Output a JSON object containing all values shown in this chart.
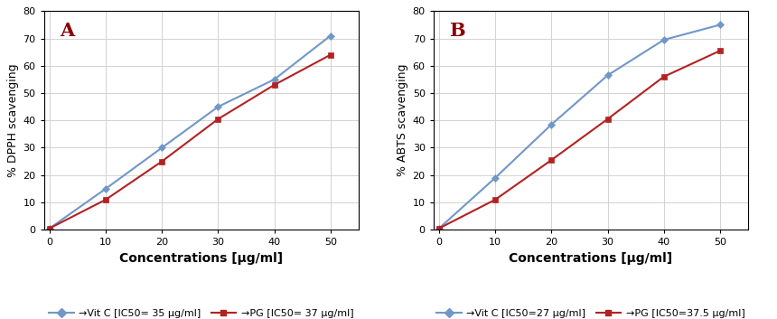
{
  "panel_A": {
    "label": "A",
    "ylabel": "% DPPH scavenging",
    "xlabel": "Concentrations [μg/ml]",
    "xlim": [
      -1,
      55
    ],
    "ylim": [
      0,
      80
    ],
    "xticks": [
      0,
      10,
      20,
      30,
      40,
      50
    ],
    "yticks": [
      0,
      10,
      20,
      30,
      40,
      50,
      60,
      70,
      80
    ],
    "vitC": {
      "x": [
        0,
        10,
        20,
        30,
        40,
        50
      ],
      "y": [
        0.5,
        15,
        30,
        45,
        55,
        71
      ],
      "color": "#7097c8",
      "label": "Vit C [IC50= 35 μg/ml]"
    },
    "PG": {
      "x": [
        0,
        10,
        20,
        30,
        40,
        50
      ],
      "y": [
        0.5,
        11,
        25,
        40.5,
        53,
        64
      ],
      "color": "#b22222",
      "label": "PG [IC50= 37 μg/ml]"
    }
  },
  "panel_B": {
    "label": "B",
    "ylabel": "% ABTS scavenging",
    "xlabel": "Concentrations [μg/ml]",
    "xlim": [
      -1,
      55
    ],
    "ylim": [
      0,
      80
    ],
    "xticks": [
      0,
      10,
      20,
      30,
      40,
      50
    ],
    "yticks": [
      0,
      10,
      20,
      30,
      40,
      50,
      60,
      70,
      80
    ],
    "vitC": {
      "x": [
        0,
        10,
        20,
        30,
        40,
        50
      ],
      "y": [
        0.5,
        19,
        38.5,
        56.5,
        69.5,
        75
      ],
      "color": "#7097c8",
      "label": "Vit C [IC50=27 μg/ml]"
    },
    "PG": {
      "x": [
        0,
        10,
        20,
        30,
        40,
        50
      ],
      "y": [
        0.5,
        11,
        25.5,
        40.5,
        56,
        65.5
      ],
      "color": "#b22222",
      "label": "PG [IC50=37.5 μg/ml]"
    }
  },
  "bg_color": "#ffffff",
  "grid_color": "#cccccc",
  "panel_label_color": "#8B0000",
  "vitC_color": "#7097c8",
  "PG_color": "#b22222"
}
